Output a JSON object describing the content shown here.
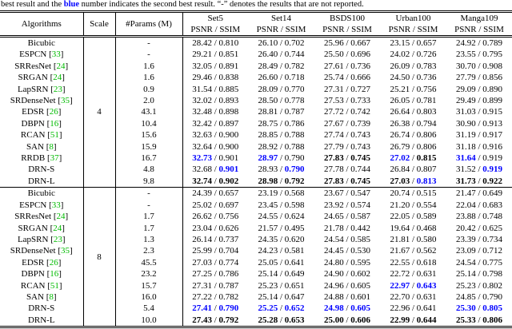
{
  "caption": {
    "prefix": "best result and the ",
    "highlight": "blue",
    "suffix": " number indicates the second best result. “-” denotes the results that are not reported."
  },
  "colors": {
    "second_best": "#0000ff",
    "best": "#000000",
    "citation": "#00bb00"
  },
  "table": {
    "col_algorithms": "Algorithms",
    "col_scale": "Scale",
    "col_params": "#Params (M)",
    "metric_label": "PSNR / SSIM",
    "separator": " / ",
    "datasets": [
      "Set5",
      "Set14",
      "BSDS100",
      "Urban100",
      "Manga109"
    ],
    "sections": [
      {
        "scale": "4",
        "rows": [
          {
            "name": "Bicubic",
            "ref": null,
            "params": "-",
            "cells": [
              {
                "p": "28.42",
                "s": "0.810"
              },
              {
                "p": "26.10",
                "s": "0.702"
              },
              {
                "p": "25.96",
                "s": "0.667"
              },
              {
                "p": "23.15",
                "s": "0.657"
              },
              {
                "p": "24.92",
                "s": "0.789"
              }
            ]
          },
          {
            "name": "ESPCN",
            "ref": "33",
            "params": "-",
            "cells": [
              {
                "p": "29.21",
                "s": "0.851"
              },
              {
                "p": "26.40",
                "s": "0.744"
              },
              {
                "p": "25.50",
                "s": "0.696"
              },
              {
                "p": "24.02",
                "s": "0.726"
              },
              {
                "p": "23.55",
                "s": "0.795"
              }
            ]
          },
          {
            "name": "SRResNet",
            "ref": "24",
            "params": "1.6",
            "cells": [
              {
                "p": "32.05",
                "s": "0.891"
              },
              {
                "p": "28.49",
                "s": "0.782"
              },
              {
                "p": "27.61",
                "s": "0.736"
              },
              {
                "p": "26.09",
                "s": "0.783"
              },
              {
                "p": "30.70",
                "s": "0.908"
              }
            ]
          },
          {
            "name": "SRGAN",
            "ref": "24",
            "params": "1.6",
            "cells": [
              {
                "p": "29.46",
                "s": "0.838"
              },
              {
                "p": "26.60",
                "s": "0.718"
              },
              {
                "p": "25.74",
                "s": "0.666"
              },
              {
                "p": "24.50",
                "s": "0.736"
              },
              {
                "p": "27.79",
                "s": "0.856"
              }
            ]
          },
          {
            "name": "LapSRN",
            "ref": "23",
            "params": "0.9",
            "cells": [
              {
                "p": "31.54",
                "s": "0.885"
              },
              {
                "p": "28.09",
                "s": "0.770"
              },
              {
                "p": "27.31",
                "s": "0.727"
              },
              {
                "p": "25.21",
                "s": "0.756"
              },
              {
                "p": "29.09",
                "s": "0.890"
              }
            ]
          },
          {
            "name": "SRDenseNet",
            "ref": "35",
            "params": "2.0",
            "cells": [
              {
                "p": "32.02",
                "s": "0.893"
              },
              {
                "p": "28.50",
                "s": "0.778"
              },
              {
                "p": "27.53",
                "s": "0.733"
              },
              {
                "p": "26.05",
                "s": "0.781"
              },
              {
                "p": "29.49",
                "s": "0.899"
              }
            ]
          },
          {
            "name": "EDSR",
            "ref": "26",
            "params": "43.1",
            "cells": [
              {
                "p": "32.48",
                "s": "0.898"
              },
              {
                "p": "28.81",
                "s": "0.787"
              },
              {
                "p": "27.72",
                "s": "0.742"
              },
              {
                "p": "26.64",
                "s": "0.803"
              },
              {
                "p": "31.03",
                "s": "0.915"
              }
            ]
          },
          {
            "name": "DBPN",
            "ref": "16",
            "params": "10.4",
            "cells": [
              {
                "p": "32.42",
                "s": "0.897"
              },
              {
                "p": "28.75",
                "s": "0.786"
              },
              {
                "p": "27.67",
                "s": "0.739"
              },
              {
                "p": "26.38",
                "s": "0.794"
              },
              {
                "p": "30.90",
                "s": "0.913"
              }
            ]
          },
          {
            "name": "RCAN",
            "ref": "51",
            "params": "15.6",
            "cells": [
              {
                "p": "32.63",
                "s": "0.900"
              },
              {
                "p": "28.85",
                "s": "0.788"
              },
              {
                "p": "27.74",
                "s": "0.743"
              },
              {
                "p": "26.74",
                "s": "0.806"
              },
              {
                "p": "31.19",
                "s": "0.917"
              }
            ]
          },
          {
            "name": "SAN",
            "ref": "8",
            "params": "15.9",
            "cells": [
              {
                "p": "32.64",
                "s": "0.900"
              },
              {
                "p": "28.92",
                "s": "0.788"
              },
              {
                "p": "27.79",
                "s": "0.743"
              },
              {
                "p": "26.79",
                "s": "0.806"
              },
              {
                "p": "31.18",
                "s": "0.916"
              }
            ]
          },
          {
            "name": "RRDB",
            "ref": "37",
            "params": "16.7",
            "cells": [
              {
                "p": "32.73",
                "pc": "2",
                "s": "0.901"
              },
              {
                "p": "28.97",
                "pc": "2",
                "s": "0.790"
              },
              {
                "p": "27.83",
                "pc": "b",
                "s": "0.745",
                "sc": "b"
              },
              {
                "p": "27.02",
                "pc": "2",
                "s": "0.815",
                "sc": "b"
              },
              {
                "p": "31.64",
                "pc": "2",
                "s": "0.919"
              }
            ]
          },
          {
            "name": "DRN-S",
            "ref": null,
            "params": "4.8",
            "cells": [
              {
                "p": "32.68",
                "s": "0.901",
                "sc": "2"
              },
              {
                "p": "28.93",
                "s": "0.790",
                "sc": "2"
              },
              {
                "p": "27.78",
                "s": "0.744"
              },
              {
                "p": "26.84",
                "s": "0.807"
              },
              {
                "p": "31.52",
                "s": "0.919",
                "sc": "2"
              }
            ]
          },
          {
            "name": "DRN-L",
            "ref": null,
            "params": "9.8",
            "cells": [
              {
                "p": "32.74",
                "pc": "b",
                "s": "0.902",
                "sc": "b"
              },
              {
                "p": "28.98",
                "pc": "b",
                "s": "0.792",
                "sc": "b"
              },
              {
                "p": "27.83",
                "pc": "b",
                "s": "0.745",
                "sc": "b"
              },
              {
                "p": "27.03",
                "pc": "b",
                "s": "0.813",
                "sc": "2"
              },
              {
                "p": "31.73",
                "pc": "b",
                "s": "0.922",
                "sc": "b"
              }
            ]
          }
        ]
      },
      {
        "scale": "8",
        "rows": [
          {
            "name": "Bicubic",
            "ref": null,
            "params": "-",
            "cells": [
              {
                "p": "24.39",
                "s": "0.657"
              },
              {
                "p": "23.19",
                "s": "0.568"
              },
              {
                "p": "23.67",
                "s": "0.547"
              },
              {
                "p": "20.74",
                "s": "0.515"
              },
              {
                "p": "21.47",
                "s": "0.649"
              }
            ]
          },
          {
            "name": "ESPCN",
            "ref": "33",
            "params": "-",
            "cells": [
              {
                "p": "25.02",
                "s": "0.697"
              },
              {
                "p": "23.45",
                "s": "0.598"
              },
              {
                "p": "23.92",
                "s": "0.574"
              },
              {
                "p": "21.20",
                "s": "0.554"
              },
              {
                "p": "22.04",
                "s": "0.683"
              }
            ]
          },
          {
            "name": "SRResNet",
            "ref": "24",
            "params": "1.7",
            "cells": [
              {
                "p": "26.62",
                "s": "0.756"
              },
              {
                "p": "24.55",
                "s": "0.624"
              },
              {
                "p": "24.65",
                "s": "0.587"
              },
              {
                "p": "22.05",
                "s": "0.589"
              },
              {
                "p": "23.88",
                "s": "0.748"
              }
            ]
          },
          {
            "name": "SRGAN",
            "ref": "24",
            "params": "1.7",
            "cells": [
              {
                "p": "23.04",
                "s": "0.626"
              },
              {
                "p": "21.57",
                "s": "0.495"
              },
              {
                "p": "21.78",
                "s": "0.442"
              },
              {
                "p": "19.64",
                "s": "0.468"
              },
              {
                "p": "20.42",
                "s": "0.625"
              }
            ]
          },
          {
            "name": "LapSRN",
            "ref": "23",
            "params": "1.3",
            "cells": [
              {
                "p": "26.14",
                "s": "0.737"
              },
              {
                "p": "24.35",
                "s": "0.620"
              },
              {
                "p": "24.54",
                "s": "0.585"
              },
              {
                "p": "21.81",
                "s": "0.580"
              },
              {
                "p": "23.39",
                "s": "0.734"
              }
            ]
          },
          {
            "name": "SRDenseNet",
            "ref": "35",
            "params": "2.3",
            "cells": [
              {
                "p": "25.99",
                "s": "0.704"
              },
              {
                "p": "24.23",
                "s": "0.581"
              },
              {
                "p": "24.45",
                "s": "0.530"
              },
              {
                "p": "21.67",
                "s": "0.562"
              },
              {
                "p": "23.09",
                "s": "0.712"
              }
            ]
          },
          {
            "name": "EDSR",
            "ref": "26",
            "params": "45.5",
            "cells": [
              {
                "p": "27.03",
                "s": "0.774"
              },
              {
                "p": "25.05",
                "s": "0.641"
              },
              {
                "p": "24.80",
                "s": "0.595"
              },
              {
                "p": "22.55",
                "s": "0.618"
              },
              {
                "p": "24.54",
                "s": "0.775"
              }
            ]
          },
          {
            "name": "DBPN",
            "ref": "16",
            "params": "23.2",
            "cells": [
              {
                "p": "27.25",
                "s": "0.786"
              },
              {
                "p": "25.14",
                "s": "0.649"
              },
              {
                "p": "24.90",
                "s": "0.602"
              },
              {
                "p": "22.72",
                "s": "0.631"
              },
              {
                "p": "25.14",
                "s": "0.798"
              }
            ]
          },
          {
            "name": "RCAN",
            "ref": "51",
            "params": "15.7",
            "cells": [
              {
                "p": "27.31",
                "s": "0.787"
              },
              {
                "p": "25.23",
                "s": "0.651"
              },
              {
                "p": "24.96",
                "s": "0.605"
              },
              {
                "p": "22.97",
                "pc": "2",
                "s": "0.643",
                "sc": "2"
              },
              {
                "p": "25.23",
                "s": "0.802"
              }
            ]
          },
          {
            "name": "SAN",
            "ref": "8",
            "params": "16.0",
            "cells": [
              {
                "p": "27.22",
                "s": "0.782"
              },
              {
                "p": "25.14",
                "s": "0.647"
              },
              {
                "p": "24.88",
                "s": "0.601"
              },
              {
                "p": "22.70",
                "s": "0.631"
              },
              {
                "p": "24.85",
                "s": "0.790"
              }
            ]
          },
          {
            "name": "DRN-S",
            "ref": null,
            "params": "5.4",
            "cells": [
              {
                "p": "27.41",
                "pc": "2",
                "s": "0.790",
                "sc": "2"
              },
              {
                "p": "25.25",
                "pc": "2",
                "s": "0.652",
                "sc": "2"
              },
              {
                "p": "24.98",
                "pc": "2",
                "s": "0.605",
                "sc": "2"
              },
              {
                "p": "22.96",
                "s": "0.641"
              },
              {
                "p": "25.30",
                "pc": "2",
                "s": "0.805",
                "sc": "2"
              }
            ]
          },
          {
            "name": "DRN-L",
            "ref": null,
            "params": "10.0",
            "cells": [
              {
                "p": "27.43",
                "pc": "b",
                "s": "0.792",
                "sc": "b"
              },
              {
                "p": "25.28",
                "pc": "b",
                "s": "0.653",
                "sc": "b"
              },
              {
                "p": "25.00",
                "pc": "b",
                "s": "0.606",
                "sc": "b"
              },
              {
                "p": "22.99",
                "pc": "b",
                "s": "0.644",
                "sc": "b"
              },
              {
                "p": "25.33",
                "pc": "b",
                "s": "0.806",
                "sc": "b"
              }
            ]
          }
        ]
      }
    ]
  }
}
